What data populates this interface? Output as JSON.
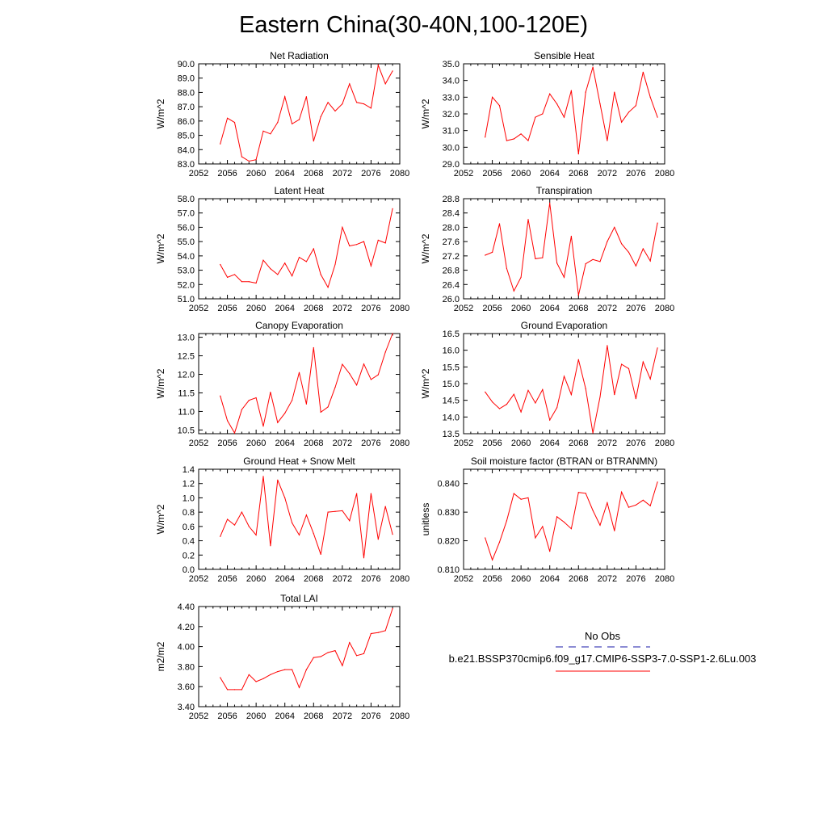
{
  "figure": {
    "title": "Eastern China(30-40N,100-120E)",
    "line_color": "#ff0000",
    "obs_color": "#1a1aa8"
  },
  "legend": {
    "obs_label": "No Obs",
    "case_label": "b.e21.BSSP370cmip6.f09_g17.CMIP6-SSP3-7.0-SSP1-2.6Lu.003"
  },
  "chart_data": [
    {
      "type": "line",
      "title": "Net Radiation",
      "ylabel": "W/m^2",
      "xlim": [
        2052,
        2080
      ],
      "ylim": [
        83.0,
        90.0
      ],
      "xticks": [
        2052,
        2056,
        2060,
        2064,
        2068,
        2072,
        2076,
        2080
      ],
      "yticks": [
        "83.0",
        "84.0",
        "85.0",
        "86.0",
        "87.0",
        "88.0",
        "89.0",
        "90.0"
      ],
      "x": [
        2055,
        2056,
        2057,
        2058,
        2059,
        2060,
        2061,
        2062,
        2063,
        2064,
        2065,
        2066,
        2067,
        2068,
        2069,
        2070,
        2071,
        2072,
        2073,
        2074,
        2075,
        2076,
        2077,
        2078,
        2079
      ],
      "values": [
        84.4,
        86.2,
        85.9,
        83.5,
        83.2,
        83.3,
        85.3,
        85.1,
        85.9,
        87.7,
        85.8,
        86.1,
        87.7,
        84.6,
        86.3,
        87.3,
        86.7,
        87.2,
        88.6,
        87.3,
        87.2,
        86.9,
        89.9,
        88.6,
        89.5
      ]
    },
    {
      "type": "line",
      "title": "Sensible Heat",
      "ylabel": "W/m^2",
      "xlim": [
        2052,
        2080
      ],
      "ylim": [
        29.0,
        35.0
      ],
      "xticks": [
        2052,
        2056,
        2060,
        2064,
        2068,
        2072,
        2076,
        2080
      ],
      "yticks": [
        "29.0",
        "30.0",
        "31.0",
        "32.0",
        "33.0",
        "34.0",
        "35.0"
      ],
      "x": [
        2055,
        2056,
        2057,
        2058,
        2059,
        2060,
        2061,
        2062,
        2063,
        2064,
        2065,
        2066,
        2067,
        2068,
        2069,
        2070,
        2071,
        2072,
        2073,
        2074,
        2075,
        2076,
        2077,
        2078,
        2079
      ],
      "values": [
        30.6,
        33.0,
        32.5,
        30.4,
        30.5,
        30.8,
        30.4,
        31.8,
        32.0,
        33.2,
        32.6,
        31.8,
        33.4,
        29.6,
        33.3,
        34.8,
        32.6,
        30.4,
        33.3,
        31.5,
        32.1,
        32.5,
        34.5,
        33.0,
        31.8
      ]
    },
    {
      "type": "line",
      "title": "Latent Heat",
      "ylabel": "W/m^2",
      "xlim": [
        2052,
        2080
      ],
      "ylim": [
        51.0,
        58.0
      ],
      "xticks": [
        2052,
        2056,
        2060,
        2064,
        2068,
        2072,
        2076,
        2080
      ],
      "yticks": [
        "51.0",
        "52.0",
        "53.0",
        "54.0",
        "55.0",
        "56.0",
        "57.0",
        "58.0"
      ],
      "x": [
        2055,
        2056,
        2057,
        2058,
        2059,
        2060,
        2061,
        2062,
        2063,
        2064,
        2065,
        2066,
        2067,
        2068,
        2069,
        2070,
        2071,
        2072,
        2073,
        2074,
        2075,
        2076,
        2077,
        2078,
        2079
      ],
      "values": [
        53.4,
        52.5,
        52.7,
        52.2,
        52.2,
        52.1,
        53.7,
        53.1,
        52.7,
        53.5,
        52.6,
        53.9,
        53.6,
        54.5,
        52.7,
        51.8,
        53.4,
        56.0,
        54.7,
        54.8,
        55.0,
        53.3,
        55.1,
        54.9,
        57.3
      ]
    },
    {
      "type": "line",
      "title": "Transpiration",
      "ylabel": "W/m^2",
      "xlim": [
        2052,
        2080
      ],
      "ylim": [
        26.0,
        28.8
      ],
      "xticks": [
        2052,
        2056,
        2060,
        2064,
        2068,
        2072,
        2076,
        2080
      ],
      "yticks": [
        "26.0",
        "26.4",
        "26.8",
        "27.2",
        "27.6",
        "28.0",
        "28.4",
        "28.8"
      ],
      "x": [
        2055,
        2056,
        2057,
        2058,
        2059,
        2060,
        2061,
        2062,
        2063,
        2064,
        2065,
        2066,
        2067,
        2068,
        2069,
        2070,
        2071,
        2072,
        2073,
        2074,
        2075,
        2076,
        2077,
        2078,
        2079
      ],
      "values": [
        27.22,
        27.3,
        28.1,
        26.85,
        26.22,
        26.6,
        28.22,
        27.12,
        27.15,
        28.68,
        27.0,
        26.6,
        27.75,
        26.1,
        26.98,
        27.1,
        27.04,
        27.6,
        28.0,
        27.54,
        27.3,
        26.92,
        27.4,
        27.06,
        28.12
      ]
    },
    {
      "type": "line",
      "title": "Canopy Evaporation",
      "ylabel": "W/m^2",
      "xlim": [
        2052,
        2080
      ],
      "ylim": [
        10.4,
        13.1
      ],
      "xticks": [
        2052,
        2056,
        2060,
        2064,
        2068,
        2072,
        2076,
        2080
      ],
      "yticks": [
        "10.5",
        "11.0",
        "11.5",
        "12.0",
        "12.5",
        "13.0"
      ],
      "x": [
        2055,
        2056,
        2057,
        2058,
        2059,
        2060,
        2061,
        2062,
        2063,
        2064,
        2065,
        2066,
        2067,
        2068,
        2069,
        2070,
        2071,
        2072,
        2073,
        2074,
        2075,
        2076,
        2077,
        2078,
        2079
      ],
      "values": [
        11.42,
        10.75,
        10.42,
        11.05,
        11.3,
        11.37,
        10.6,
        11.52,
        10.7,
        10.95,
        11.3,
        12.05,
        11.2,
        12.72,
        10.98,
        11.12,
        11.65,
        12.27,
        12.02,
        11.71,
        12.28,
        11.86,
        11.99,
        12.6,
        13.1
      ]
    },
    {
      "type": "line",
      "title": "Ground Evaporation",
      "ylabel": "W/m^2",
      "xlim": [
        2052,
        2080
      ],
      "ylim": [
        13.5,
        16.5
      ],
      "xticks": [
        2052,
        2056,
        2060,
        2064,
        2068,
        2072,
        2076,
        2080
      ],
      "yticks": [
        "13.5",
        "14.0",
        "14.5",
        "15.0",
        "15.5",
        "16.0",
        "16.5"
      ],
      "x": [
        2055,
        2056,
        2057,
        2058,
        2059,
        2060,
        2061,
        2062,
        2063,
        2064,
        2065,
        2066,
        2067,
        2068,
        2069,
        2070,
        2071,
        2072,
        2073,
        2074,
        2075,
        2076,
        2077,
        2078,
        2079
      ],
      "values": [
        14.75,
        14.45,
        14.25,
        14.38,
        14.68,
        14.15,
        14.8,
        14.42,
        14.82,
        13.91,
        14.28,
        15.22,
        14.67,
        15.72,
        14.85,
        13.52,
        14.6,
        16.14,
        14.67,
        15.58,
        15.45,
        14.55,
        15.65,
        15.14,
        16.07
      ]
    },
    {
      "type": "line",
      "title": "Ground Heat + Snow Melt",
      "ylabel": "W/m^2",
      "xlim": [
        2052,
        2080
      ],
      "ylim": [
        0.0,
        1.4
      ],
      "xticks": [
        2052,
        2056,
        2060,
        2064,
        2068,
        2072,
        2076,
        2080
      ],
      "yticks": [
        "0.0",
        "0.2",
        "0.4",
        "0.6",
        "0.8",
        "1.0",
        "1.2",
        "1.4"
      ],
      "x": [
        2055,
        2056,
        2057,
        2058,
        2059,
        2060,
        2061,
        2062,
        2063,
        2064,
        2065,
        2066,
        2067,
        2068,
        2069,
        2070,
        2071,
        2072,
        2073,
        2074,
        2075,
        2076,
        2077,
        2078,
        2079
      ],
      "values": [
        0.46,
        0.7,
        0.62,
        0.8,
        0.6,
        0.48,
        1.3,
        0.33,
        1.25,
        1.0,
        0.65,
        0.48,
        0.76,
        0.5,
        0.21,
        0.8,
        0.81,
        0.82,
        0.68,
        1.06,
        0.16,
        1.06,
        0.42,
        0.88,
        0.49
      ]
    },
    {
      "type": "line",
      "title": "Soil moisture factor (BTRAN or BTRANMN)",
      "ylabel": "unitless",
      "xlim": [
        2052,
        2080
      ],
      "ylim": [
        0.81,
        0.845
      ],
      "xticks": [
        2052,
        2056,
        2060,
        2064,
        2068,
        2072,
        2076,
        2080
      ],
      "yticks": [
        "0.810",
        "0.820",
        "0.830",
        "0.840"
      ],
      "x": [
        2055,
        2056,
        2057,
        2058,
        2059,
        2060,
        2061,
        2062,
        2063,
        2064,
        2065,
        2066,
        2067,
        2068,
        2069,
        2070,
        2071,
        2072,
        2073,
        2074,
        2075,
        2076,
        2077,
        2078,
        2079
      ],
      "values": [
        0.821,
        0.8133,
        0.8195,
        0.827,
        0.8365,
        0.8345,
        0.835,
        0.821,
        0.825,
        0.8163,
        0.8284,
        0.8265,
        0.8242,
        0.8369,
        0.8366,
        0.8306,
        0.8254,
        0.8333,
        0.8235,
        0.837,
        0.8317,
        0.8325,
        0.8342,
        0.8322,
        0.8405
      ]
    },
    {
      "type": "line",
      "title": "Total LAI",
      "ylabel": "m2/m2",
      "xlim": [
        2052,
        2080
      ],
      "ylim": [
        3.4,
        4.4
      ],
      "xticks": [
        2052,
        2056,
        2060,
        2064,
        2068,
        2072,
        2076,
        2080
      ],
      "yticks": [
        "3.40",
        "3.60",
        "3.80",
        "4.00",
        "4.20",
        "4.40"
      ],
      "x": [
        2055,
        2056,
        2057,
        2058,
        2059,
        2060,
        2061,
        2062,
        2063,
        2064,
        2065,
        2066,
        2067,
        2068,
        2069,
        2070,
        2071,
        2072,
        2073,
        2074,
        2075,
        2076,
        2077,
        2078,
        2079
      ],
      "values": [
        3.69,
        3.57,
        3.57,
        3.57,
        3.72,
        3.65,
        3.68,
        3.72,
        3.75,
        3.77,
        3.77,
        3.59,
        3.77,
        3.89,
        3.9,
        3.94,
        3.96,
        3.81,
        4.04,
        3.91,
        3.93,
        4.13,
        4.14,
        4.16,
        4.38
      ]
    }
  ]
}
